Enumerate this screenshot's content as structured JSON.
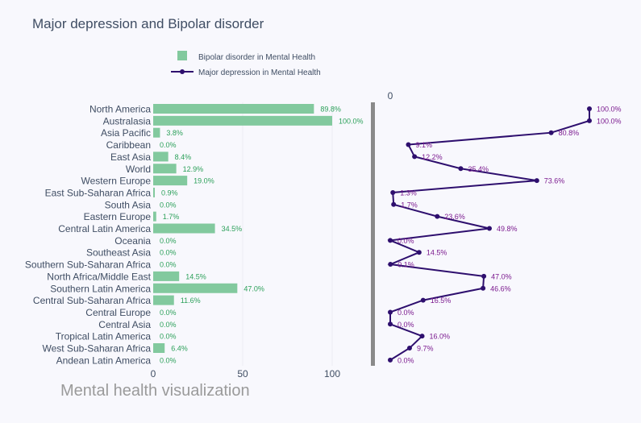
{
  "chart_data": {
    "type": "bar+line",
    "title": "Major depression and Bipolar disorder",
    "caption": "Mental health visualization",
    "categories": [
      "North America",
      "Australasia",
      "Asia Pacific",
      "Caribbean",
      "East Asia",
      "World",
      "Western Europe",
      "East Sub-Saharan Africa",
      "South Asia",
      "Eastern Europe",
      "Central Latin America",
      "Oceania",
      "Southeast Asia",
      "Southern Sub-Saharan Africa",
      "North Africa/Middle East",
      "Southern Latin America",
      "Central Sub-Saharan Africa",
      "Central Europe",
      "Central Asia",
      "Tropical Latin America",
      "West Sub-Saharan Africa",
      "Andean Latin America"
    ],
    "series": [
      {
        "name": "Bipolar disorder in Mental Health",
        "type": "bar",
        "color": "#82c99e",
        "label_color": "#2ca05a",
        "values": [
          89.8,
          100.0,
          3.8,
          0.0,
          8.4,
          12.9,
          19.0,
          0.9,
          0.0,
          1.7,
          34.5,
          0.0,
          0.0,
          0.0,
          14.5,
          47.0,
          11.6,
          0.0,
          0.0,
          0.0,
          6.4,
          0.0
        ],
        "labels": [
          "89.8%",
          "100.0%",
          "3.8%",
          "0.0%",
          "8.4%",
          "12.9%",
          "19.0%",
          "0.9%",
          "0.0%",
          "1.7%",
          "34.5%",
          "0.0%",
          "0.0%",
          "0.0%",
          "14.5%",
          "47.0%",
          "11.6%",
          "0.0%",
          "0.0%",
          "0.0%",
          "6.4%",
          "0.0%"
        ]
      },
      {
        "name": "Major depression in Mental Health",
        "type": "line",
        "color": "#2e0f6e",
        "label_color": "#7b1a8f",
        "values": [
          100.0,
          100.0,
          80.8,
          9.1,
          12.2,
          35.4,
          73.6,
          1.3,
          1.7,
          23.6,
          49.8,
          0.0,
          14.5,
          0.1,
          47.0,
          46.6,
          16.5,
          0.0,
          0.0,
          16.0,
          9.7,
          0.0
        ],
        "labels": [
          "100.0%",
          "100.0%",
          "80.8%",
          "9.1%",
          "12.2%",
          "35.4%",
          "73.6%",
          "1.3%",
          "1.7%",
          "23.6%",
          "49.8%",
          "0.0%",
          "14.5%",
          "0.1%",
          "47.0%",
          "46.6%",
          "16.5%",
          "0.0%",
          "0.0%",
          "16.0%",
          "9.7%",
          "0.0%"
        ]
      }
    ],
    "bar_axis": {
      "ticks": [
        0,
        50,
        100
      ],
      "range": [
        0,
        100
      ]
    },
    "line_axis": {
      "ticks": [
        0
      ],
      "range": [
        0,
        100
      ]
    },
    "legend_position": "top-center"
  }
}
